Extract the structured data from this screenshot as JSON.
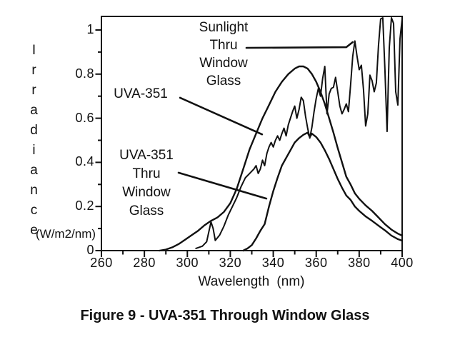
{
  "figure": {
    "caption": "Figure 9 - UVA-351 Through Window Glass"
  },
  "colors": {
    "ink": "#111111",
    "background": "#ffffff"
  },
  "axes": {
    "x": {
      "title": "Wavelength (nm)",
      "min": 260,
      "max": 400,
      "major_ticks": [
        260,
        280,
        300,
        320,
        340,
        360,
        380,
        400
      ],
      "minor_ticks": [
        270,
        290,
        310,
        330,
        350,
        370,
        390
      ]
    },
    "y": {
      "title": "Irradiance",
      "unit": "(W/m2/nm)",
      "min": 0,
      "max": 1.06,
      "major_ticks": [
        0,
        0.2,
        0.4,
        0.6,
        0.8,
        1
      ],
      "minor_ticks": [
        0.1,
        0.3,
        0.5,
        0.7,
        0.9
      ]
    }
  },
  "annotations": {
    "sunlight": {
      "lines": [
        "Sunlight",
        "Thru",
        "Window",
        "Glass"
      ],
      "pointer": [
        [
          327.5,
          0.919
        ],
        [
          374.0,
          0.922
        ],
        [
          377.0,
          0.945
        ]
      ]
    },
    "uva": {
      "label": "UVA-351",
      "pointer": [
        [
          296.6,
          0.693
        ],
        [
          334.8,
          0.527
        ]
      ]
    },
    "uva_thru": {
      "lines": [
        "UVA-351",
        "Thru",
        "Window",
        "Glass"
      ],
      "pointer": [
        [
          295.9,
          0.353
        ],
        [
          336.8,
          0.236
        ]
      ]
    }
  },
  "chart_data": {
    "type": "line",
    "title": "",
    "xlabel": "Wavelength (nm)",
    "ylabel": "Irradiance (W/m2/nm)",
    "xlim": [
      260,
      400
    ],
    "ylim": [
      0,
      1.06
    ],
    "x_ticks": [
      260,
      280,
      300,
      320,
      340,
      360,
      380,
      400
    ],
    "y_ticks": [
      0,
      0.2,
      0.4,
      0.6,
      0.8,
      1
    ],
    "grid": false,
    "legend": "labeled with arrows on plot",
    "series": [
      {
        "name": "Sunlight Thru Window Glass",
        "points": [
          [
            304,
            0.01
          ],
          [
            307,
            0.02
          ],
          [
            309,
            0.04
          ],
          [
            311,
            0.13
          ],
          [
            312,
            0.1
          ],
          [
            313,
            0.046
          ],
          [
            315,
            0.07
          ],
          [
            317,
            0.11
          ],
          [
            319,
            0.16
          ],
          [
            321,
            0.2
          ],
          [
            323,
            0.24
          ],
          [
            325,
            0.29
          ],
          [
            327,
            0.33
          ],
          [
            329,
            0.35
          ],
          [
            331,
            0.37
          ],
          [
            332,
            0.385
          ],
          [
            333,
            0.35
          ],
          [
            334,
            0.37
          ],
          [
            335,
            0.41
          ],
          [
            336,
            0.385
          ],
          [
            337,
            0.44
          ],
          [
            338,
            0.47
          ],
          [
            339,
            0.49
          ],
          [
            340,
            0.47
          ],
          [
            341,
            0.5
          ],
          [
            342,
            0.52
          ],
          [
            343,
            0.5
          ],
          [
            344,
            0.53
          ],
          [
            345,
            0.555
          ],
          [
            346,
            0.52
          ],
          [
            347,
            0.57
          ],
          [
            348,
            0.6
          ],
          [
            349,
            0.63
          ],
          [
            350,
            0.655
          ],
          [
            351,
            0.6
          ],
          [
            352,
            0.64
          ],
          [
            353,
            0.695
          ],
          [
            354,
            0.68
          ],
          [
            355,
            0.61
          ],
          [
            356,
            0.555
          ],
          [
            357,
            0.51
          ],
          [
            358,
            0.56
          ],
          [
            359,
            0.63
          ],
          [
            360,
            0.69
          ],
          [
            361,
            0.735
          ],
          [
            362,
            0.7
          ],
          [
            363,
            0.78
          ],
          [
            364,
            0.835
          ],
          [
            365,
            0.62
          ],
          [
            366,
            0.71
          ],
          [
            367,
            0.735
          ],
          [
            368,
            0.74
          ],
          [
            369,
            0.785
          ],
          [
            370,
            0.72
          ],
          [
            371,
            0.655
          ],
          [
            372,
            0.62
          ],
          [
            373,
            0.64
          ],
          [
            374,
            0.665
          ],
          [
            375,
            0.63
          ],
          [
            376,
            0.75
          ],
          [
            377,
            0.88
          ],
          [
            378,
            0.95
          ],
          [
            379,
            0.88
          ],
          [
            380,
            0.82
          ],
          [
            381,
            0.84
          ],
          [
            382,
            0.73
          ],
          [
            383,
            0.565
          ],
          [
            384,
            0.62
          ],
          [
            385,
            0.795
          ],
          [
            386,
            0.77
          ],
          [
            387,
            0.72
          ],
          [
            388,
            0.76
          ],
          [
            389,
            0.93
          ],
          [
            390,
            1.05
          ],
          [
            391,
            1.055
          ],
          [
            392,
            0.82
          ],
          [
            393,
            0.54
          ],
          [
            394,
            0.92
          ],
          [
            395,
            1.055
          ],
          [
            396,
            1.03
          ],
          [
            397,
            0.72
          ],
          [
            398,
            0.66
          ],
          [
            399,
            0.96
          ],
          [
            400,
            1.05
          ]
        ]
      },
      {
        "name": "UVA-351",
        "points": [
          [
            287,
            0.0
          ],
          [
            290,
            0.005
          ],
          [
            293,
            0.015
          ],
          [
            296,
            0.03
          ],
          [
            299,
            0.05
          ],
          [
            302,
            0.07
          ],
          [
            305,
            0.09
          ],
          [
            308,
            0.115
          ],
          [
            311,
            0.135
          ],
          [
            314,
            0.15
          ],
          [
            317,
            0.175
          ],
          [
            320,
            0.215
          ],
          [
            323,
            0.28
          ],
          [
            326,
            0.37
          ],
          [
            329,
            0.46
          ],
          [
            332,
            0.53
          ],
          [
            335,
            0.6
          ],
          [
            338,
            0.66
          ],
          [
            341,
            0.72
          ],
          [
            344,
            0.765
          ],
          [
            347,
            0.8
          ],
          [
            350,
            0.825
          ],
          [
            352,
            0.835
          ],
          [
            354,
            0.835
          ],
          [
            356,
            0.825
          ],
          [
            358,
            0.8
          ],
          [
            360,
            0.765
          ],
          [
            362,
            0.72
          ],
          [
            364,
            0.665
          ],
          [
            366,
            0.6
          ],
          [
            368,
            0.535
          ],
          [
            370,
            0.465
          ],
          [
            372,
            0.4
          ],
          [
            374,
            0.335
          ],
          [
            376,
            0.3
          ],
          [
            378,
            0.26
          ],
          [
            380,
            0.235
          ],
          [
            383,
            0.205
          ],
          [
            386,
            0.18
          ],
          [
            389,
            0.15
          ],
          [
            392,
            0.12
          ],
          [
            395,
            0.095
          ],
          [
            398,
            0.077
          ],
          [
            400,
            0.068
          ]
        ]
      },
      {
        "name": "UVA-351 Thru Window Glass",
        "points": [
          [
            326,
            0.0
          ],
          [
            328,
            0.01
          ],
          [
            330,
            0.025
          ],
          [
            332,
            0.055
          ],
          [
            334,
            0.09
          ],
          [
            336,
            0.12
          ],
          [
            338,
            0.2
          ],
          [
            340,
            0.27
          ],
          [
            342,
            0.33
          ],
          [
            344,
            0.385
          ],
          [
            346,
            0.42
          ],
          [
            348,
            0.455
          ],
          [
            350,
            0.49
          ],
          [
            352,
            0.51
          ],
          [
            354,
            0.525
          ],
          [
            356,
            0.535
          ],
          [
            357,
            0.515
          ],
          [
            358,
            0.53
          ],
          [
            360,
            0.515
          ],
          [
            362,
            0.49
          ],
          [
            364,
            0.455
          ],
          [
            366,
            0.415
          ],
          [
            368,
            0.37
          ],
          [
            370,
            0.325
          ],
          [
            372,
            0.285
          ],
          [
            374,
            0.25
          ],
          [
            376,
            0.23
          ],
          [
            378,
            0.2
          ],
          [
            380,
            0.18
          ],
          [
            383,
            0.155
          ],
          [
            386,
            0.135
          ],
          [
            389,
            0.113
          ],
          [
            392,
            0.092
          ],
          [
            395,
            0.068
          ],
          [
            398,
            0.052
          ],
          [
            400,
            0.045
          ]
        ]
      }
    ]
  }
}
